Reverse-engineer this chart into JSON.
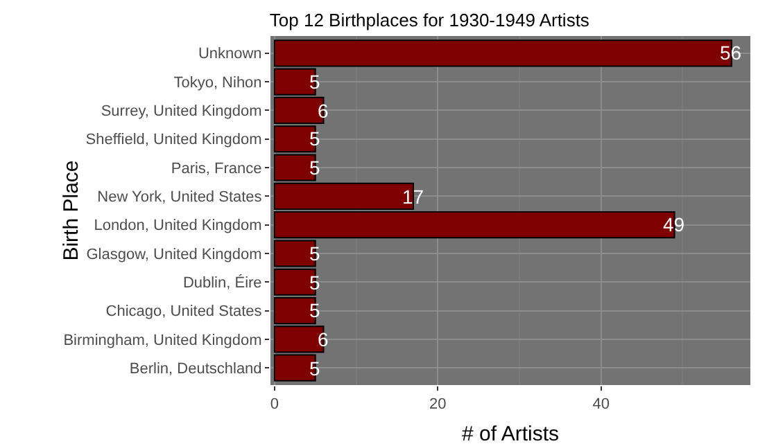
{
  "chart_data": {
    "type": "bar",
    "orientation": "horizontal",
    "title": "Top 12 Birthplaces for 1930-1949 Artists",
    "xlabel": "# of Artists",
    "ylabel": "Birth Place",
    "categories": [
      "Unknown",
      "Tokyo, Nihon",
      "Surrey, United Kingdom",
      "Sheffield, United Kingdom",
      "Paris, France",
      "New York, United States",
      "London, United Kingdom",
      "Glasgow, United Kingdom",
      "Dublin, Éire",
      "Chicago, United States",
      "Birmingham, United Kingdom",
      "Berlin, Deutschland"
    ],
    "values": [
      56,
      5,
      6,
      5,
      5,
      17,
      49,
      5,
      5,
      5,
      6,
      5
    ],
    "color": "#7f0000",
    "xlim": [
      -0.5,
      58.3
    ],
    "xticks": [
      0,
      20,
      40
    ],
    "grid": true,
    "data_labels": true
  }
}
